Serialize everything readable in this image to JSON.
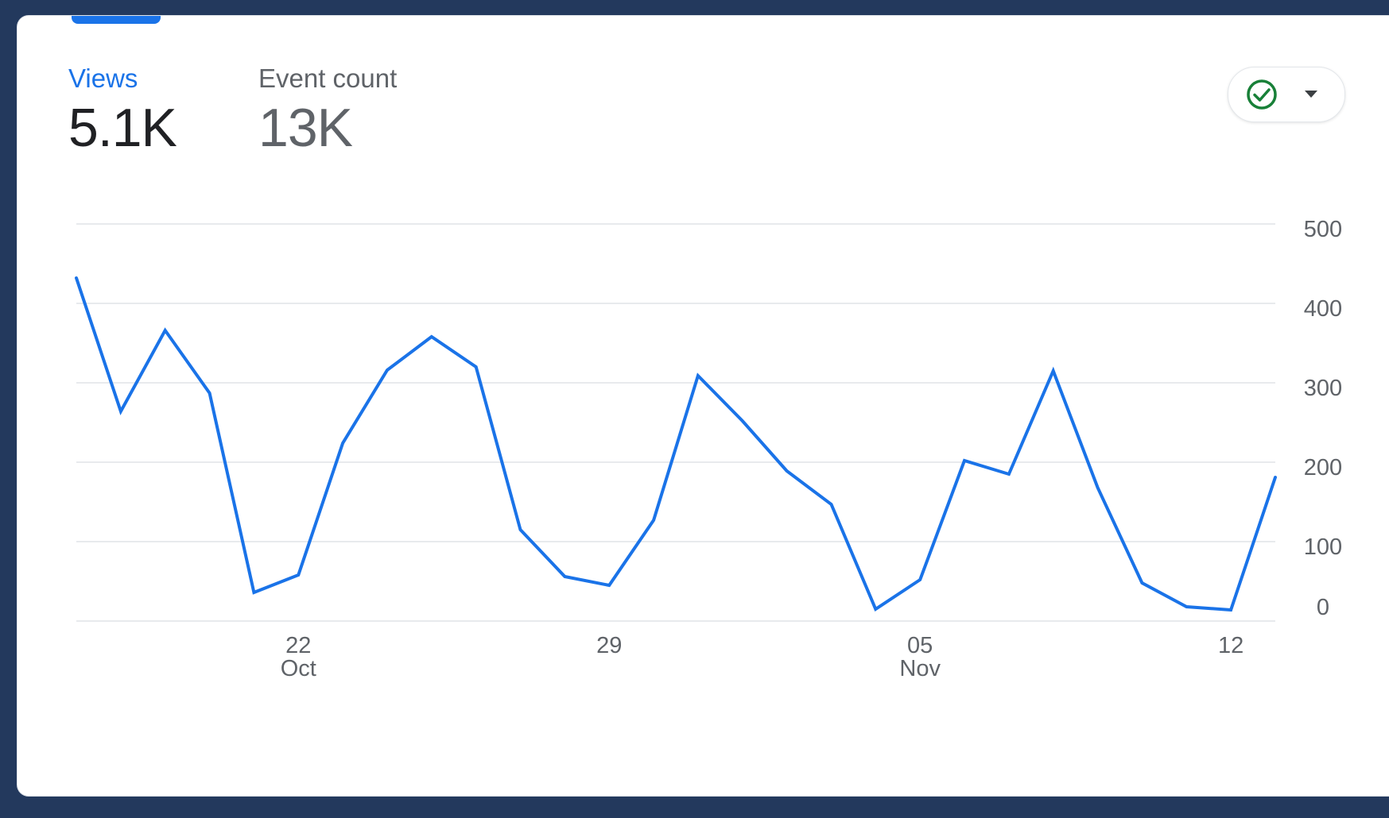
{
  "metrics": [
    {
      "label": "Views",
      "value": "5.1K"
    },
    {
      "label": "Event count",
      "value": "13K"
    }
  ],
  "colors": {
    "accent": "#1a73e8",
    "check": "#188038",
    "grid": "#e8eaed"
  },
  "icons": {
    "compare": "check-circle-icon",
    "dropdown": "caret-down-icon"
  },
  "chart_data": {
    "type": "line",
    "title": "",
    "xlabel": "",
    "ylabel": "",
    "grid": true,
    "y_axis_side": "right",
    "ylim": [
      0,
      500
    ],
    "yticks": [
      0,
      100,
      200,
      300,
      400,
      500
    ],
    "x_ticks": [
      {
        "day": "22",
        "month": "Oct",
        "date": "2023-10-22"
      },
      {
        "day": "29",
        "month": "",
        "date": "2023-10-29"
      },
      {
        "day": "05",
        "month": "Nov",
        "date": "2023-11-05"
      },
      {
        "day": "12",
        "month": "",
        "date": "2023-11-12"
      }
    ],
    "x": [
      "2023-10-17",
      "2023-10-18",
      "2023-10-19",
      "2023-10-20",
      "2023-10-21",
      "2023-10-22",
      "2023-10-23",
      "2023-10-24",
      "2023-10-25",
      "2023-10-26",
      "2023-10-27",
      "2023-10-28",
      "2023-10-29",
      "2023-10-30",
      "2023-10-31",
      "2023-11-01",
      "2023-11-02",
      "2023-11-03",
      "2023-11-04",
      "2023-11-05",
      "2023-11-06",
      "2023-11-07",
      "2023-11-08",
      "2023-11-09",
      "2023-11-10",
      "2023-11-11",
      "2023-11-12",
      "2023-11-13"
    ],
    "series": [
      {
        "name": "Views",
        "values": [
          432,
          264,
          366,
          287,
          36,
          58,
          224,
          316,
          358,
          320,
          115,
          56,
          45,
          127,
          309,
          252,
          189,
          147,
          15,
          52,
          202,
          185,
          315,
          168,
          48,
          18,
          14,
          181
        ]
      }
    ]
  }
}
